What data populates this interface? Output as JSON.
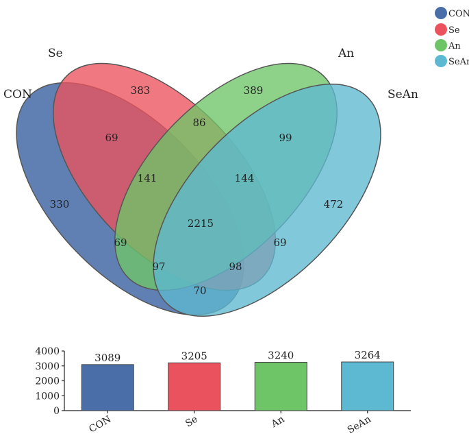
{
  "colors": {
    "CON": "#4a6ea8",
    "Se": "#ea525e",
    "An": "#6ec568",
    "SeAn": "#5db8d1"
  },
  "legend": [
    {
      "key": "CON",
      "label": "CON"
    },
    {
      "key": "Se",
      "label": "Se"
    },
    {
      "key": "An",
      "label": "An"
    },
    {
      "key": "SeAn",
      "label": "SeAn"
    }
  ],
  "venn": {
    "set_labels": {
      "CON": "CON",
      "Se": "Se",
      "An": "An",
      "SeAn": "SeAn"
    },
    "regions": {
      "Se_only": "383",
      "An_only": "389",
      "Se_An": "86",
      "CON_Se": "69",
      "An_SeAn": "99",
      "CON_Se_An": "141",
      "Se_An_SeAn": "144",
      "CON_only": "330",
      "SeAn_only": "472",
      "all": "2215",
      "CON_An": "69",
      "Se_SeAn": "69",
      "CON_An_SeAn": "97",
      "CON_Se_SeAn": "98",
      "CON_SeAn": "70"
    }
  },
  "chart_data": {
    "type": "bar",
    "categories": [
      "CON",
      "Se",
      "An",
      "SeAn"
    ],
    "values": [
      3089,
      3205,
      3240,
      3264
    ],
    "value_labels": [
      "3089",
      "3205",
      "3240",
      "3264"
    ],
    "title": "",
    "xlabel": "",
    "ylabel": "",
    "ylim": [
      0,
      4000
    ],
    "yticks": [
      "0",
      "1000",
      "2000",
      "3000",
      "4000"
    ]
  }
}
